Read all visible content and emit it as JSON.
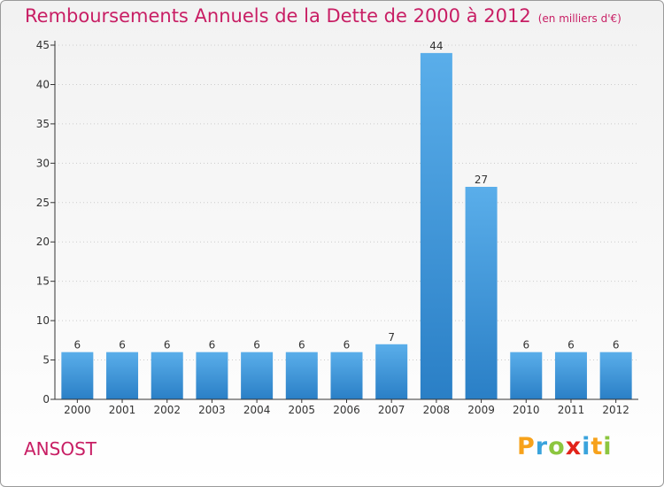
{
  "title": "Remboursements Annuels de la Dette de 2000 à 2012",
  "subtitle": "(en milliers d'€)",
  "commune": "ANSOST",
  "logo": {
    "letters": [
      "P",
      "r",
      "o",
      "x",
      "i",
      "t",
      "i"
    ],
    "colors": [
      "#f7a21b",
      "#3aa3dc",
      "#8cc63f",
      "#e2231a",
      "#3aa3dc",
      "#f7a21b",
      "#8cc63f"
    ]
  },
  "colors": {
    "bar_light": "#5aaeea",
    "bar_dark": "#2a7fc6",
    "title": "#c81e64",
    "axis": "#333333",
    "grid": "#cccccc"
  },
  "chart_data": {
    "type": "bar",
    "categories": [
      "2000",
      "2001",
      "2002",
      "2003",
      "2004",
      "2005",
      "2006",
      "2007",
      "2008",
      "2009",
      "2010",
      "2011",
      "2012"
    ],
    "values": [
      6,
      6,
      6,
      6,
      6,
      6,
      6,
      7,
      44,
      27,
      6,
      6,
      6
    ],
    "data_labels": [
      "6",
      "6",
      "6",
      "6",
      "6",
      "6",
      "6",
      "7",
      "44",
      "27",
      "6",
      "6",
      "6"
    ],
    "yticks": [
      "0",
      "5",
      "10",
      "15",
      "20",
      "25",
      "30",
      "35",
      "40",
      "45"
    ],
    "ylim": [
      0,
      45
    ],
    "grid": "dotted horizontal",
    "legend": "none"
  }
}
